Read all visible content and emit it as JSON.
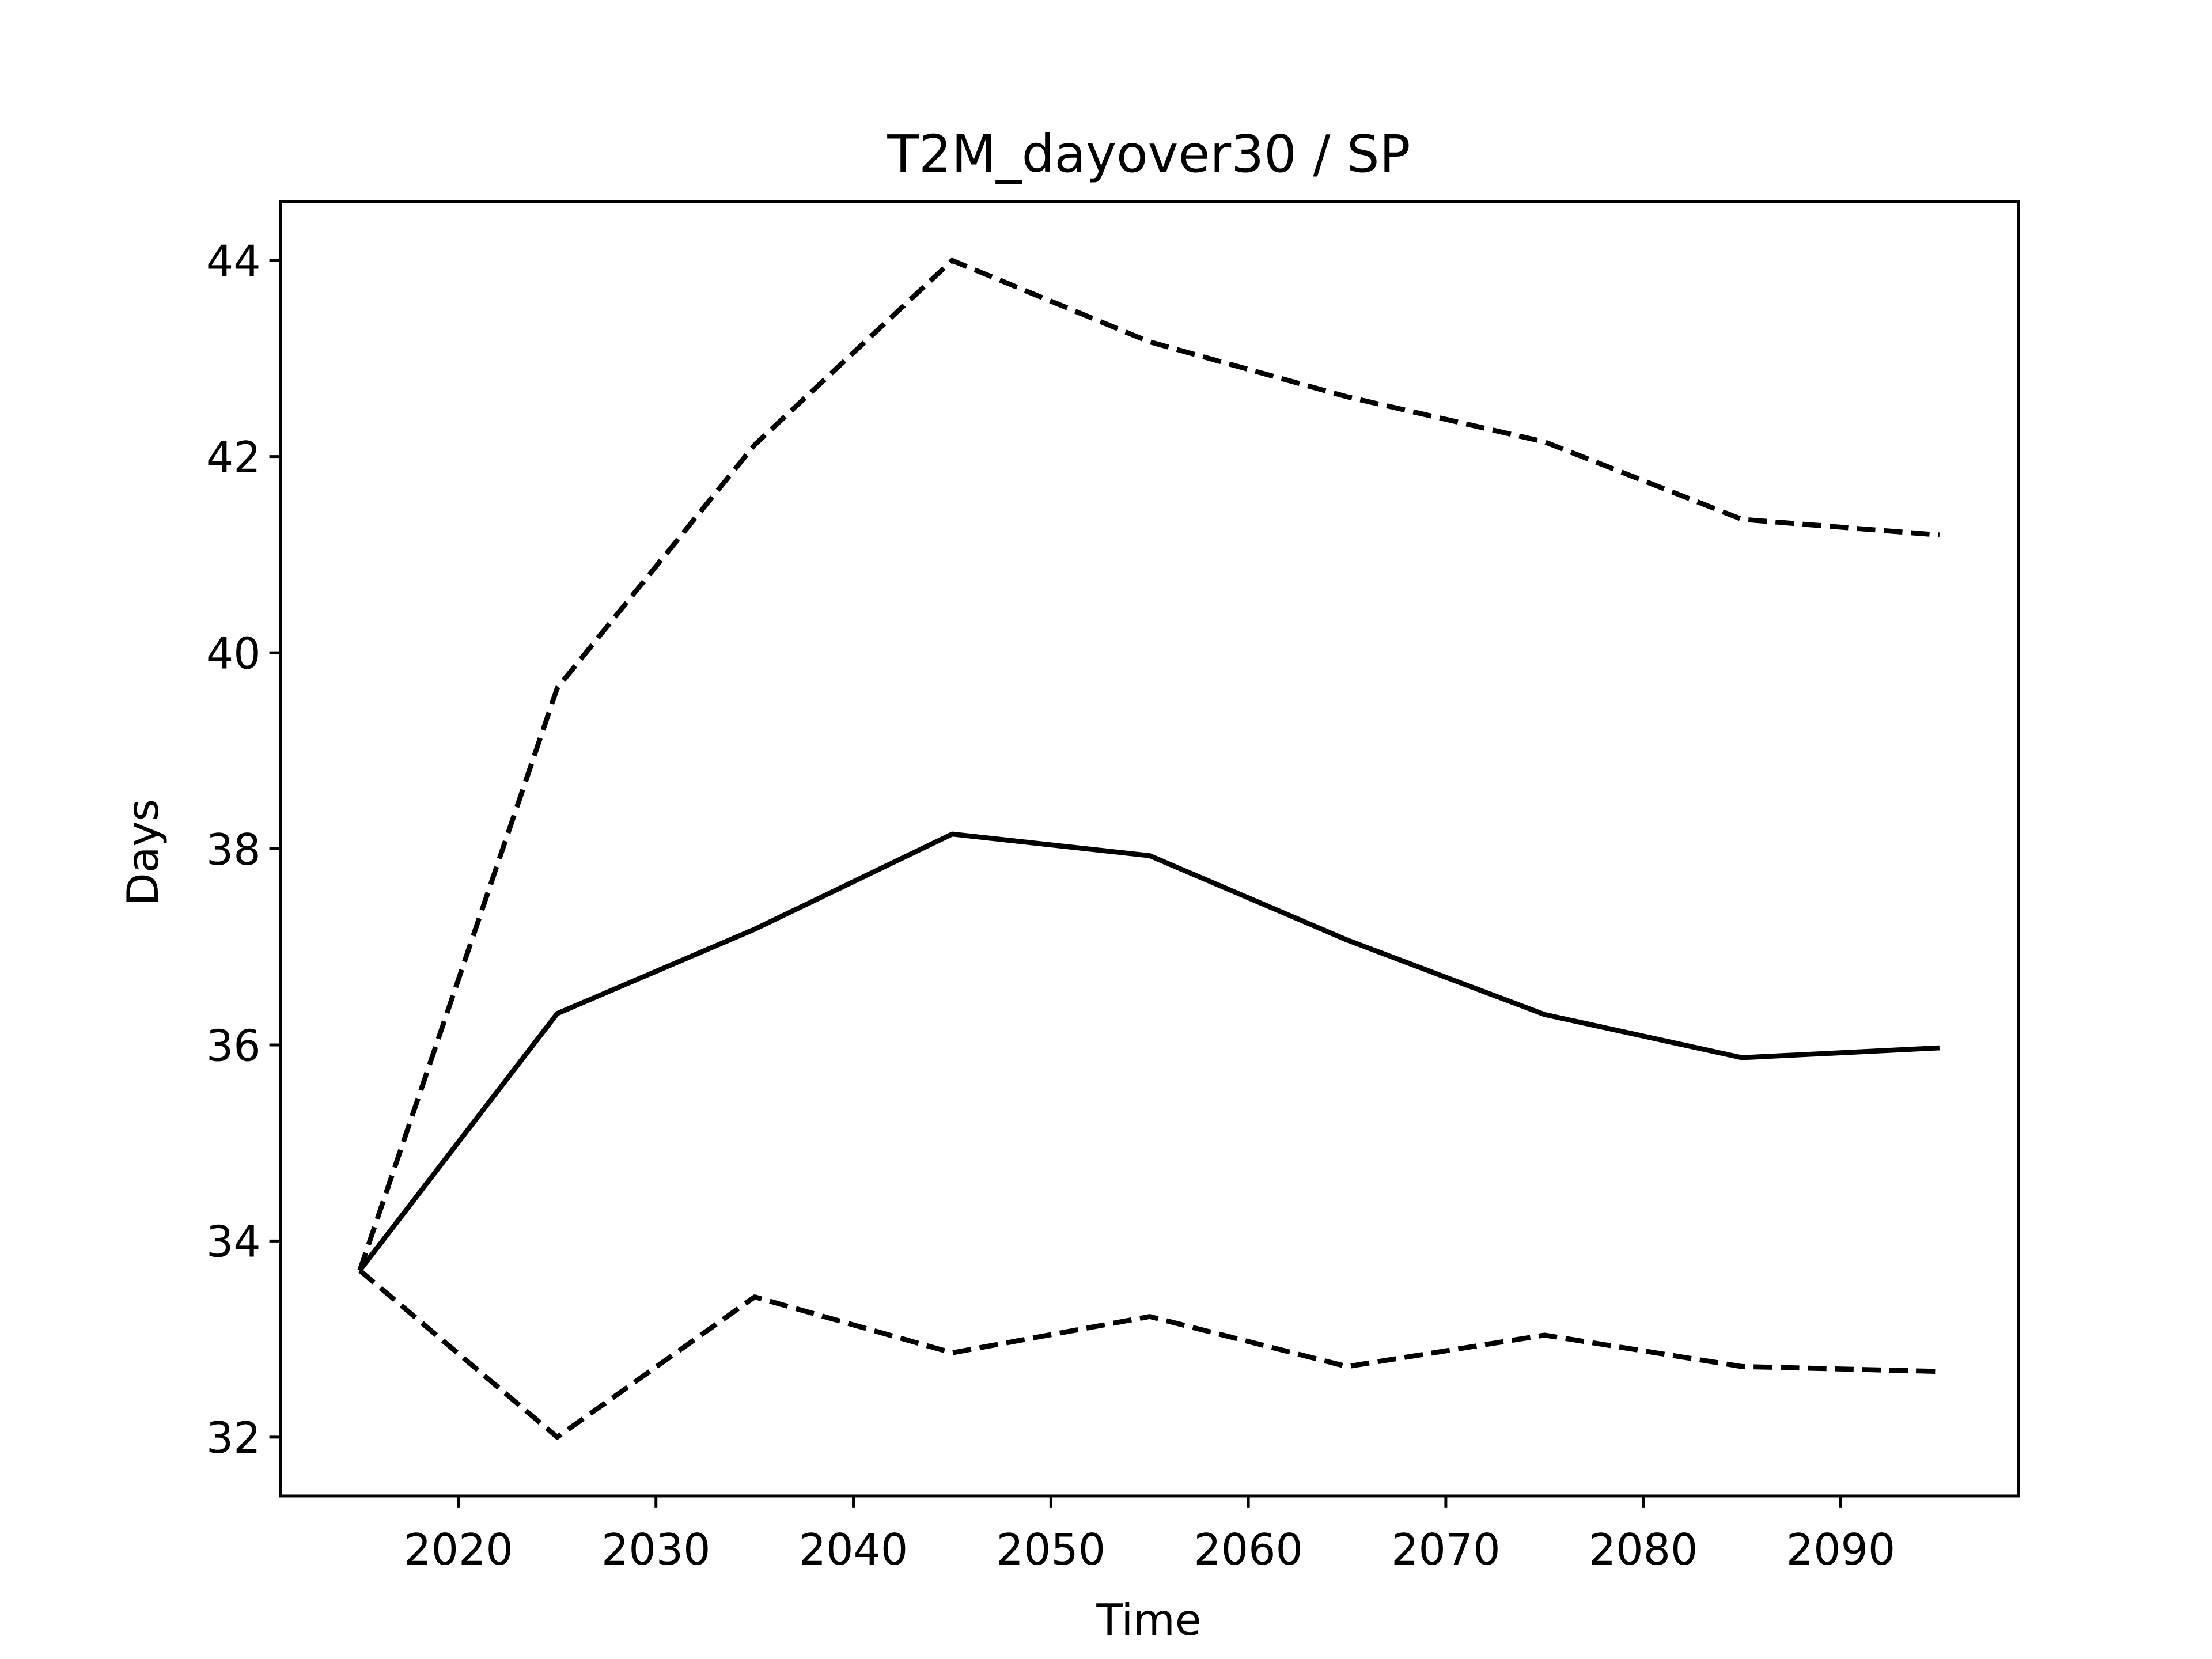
{
  "chart_data": {
    "type": "line",
    "title": "T2M_dayover30 / SP",
    "x_label": "Time",
    "y_label": "Days",
    "x": [
      2015,
      2025,
      2035,
      2045,
      2055,
      2065,
      2075,
      2085,
      2095
    ],
    "series": [
      {
        "color": "#000000",
        "linestyle": "solid",
        "values": [
          33.7,
          36.32,
          37.18,
          38.15,
          37.93,
          37.07,
          36.31,
          35.87,
          35.97
        ]
      },
      {
        "color": "#000000",
        "linestyle": "dashed",
        "values": [
          33.7,
          39.64,
          42.12,
          44.0,
          43.17,
          42.61,
          42.15,
          41.36,
          41.2
        ]
      },
      {
        "color": "#000000",
        "linestyle": "dashed",
        "values": [
          33.7,
          32.0,
          33.43,
          32.86,
          33.23,
          32.72,
          33.04,
          32.72,
          32.67
        ]
      }
    ],
    "xlim": [
      2011,
      2099
    ],
    "ylim": [
      31.4,
      44.6
    ],
    "xticks": [
      2020,
      2030,
      2040,
      2050,
      2060,
      2070,
      2080,
      2090
    ],
    "yticks": [
      32,
      34,
      36,
      38,
      40,
      42,
      44
    ],
    "grid": false
  }
}
